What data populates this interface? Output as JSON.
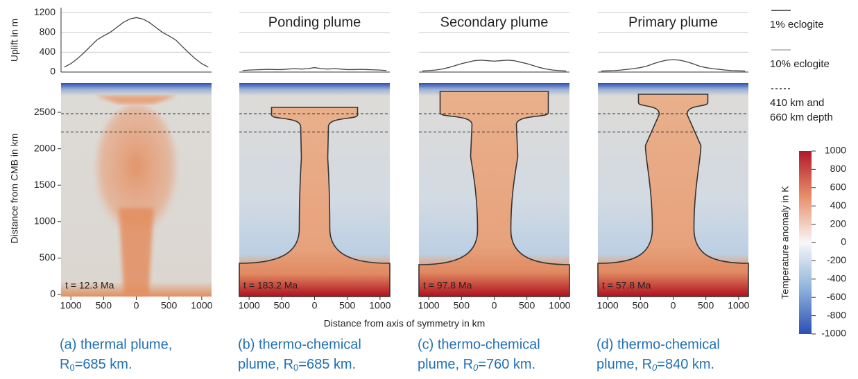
{
  "uplift_axis": {
    "label": "Uplift in m",
    "ylim": [
      0,
      1300
    ],
    "yticks": [
      0,
      400,
      800,
      1200
    ]
  },
  "field_axis": {
    "label": "Distance from CMB in km",
    "ylim": [
      0,
      2900
    ],
    "yticks": [
      0,
      500,
      1000,
      1500,
      2000,
      2500
    ],
    "xlabel": "Distance from axis of symmetry in km",
    "xlim": [
      -1150,
      1150
    ],
    "xticks": [
      {
        "value": -1000,
        "label": "1000"
      },
      {
        "value": -500,
        "label": "500"
      },
      0,
      500,
      1000
    ],
    "depth_lines": [
      2480,
      2230
    ]
  },
  "chart_data": [
    {
      "type": "line",
      "color": "#444444",
      "x": [
        -1100,
        -1000,
        -900,
        -800,
        -700,
        -600,
        -500,
        -400,
        -300,
        -200,
        -100,
        0,
        100,
        200,
        300,
        400,
        500,
        600,
        700,
        800,
        900,
        1000,
        1100
      ],
      "values": [
        100,
        170,
        270,
        390,
        520,
        650,
        730,
        800,
        900,
        1000,
        1070,
        1100,
        1070,
        1000,
        900,
        800,
        730,
        650,
        520,
        390,
        270,
        170,
        100
      ],
      "time": "t = 12.3 Ma",
      "caption": {
        "line1": "(a) thermal plume,",
        "pre": "R",
        "sub": "0",
        "post": "=685 km."
      }
    },
    {
      "type": "line",
      "color": "#444444",
      "title": "Ponding plume",
      "title_color": "#c8102e",
      "x": [
        -1100,
        -1000,
        -900,
        -800,
        -700,
        -600,
        -500,
        -400,
        -300,
        -200,
        -100,
        0,
        100,
        200,
        300,
        400,
        500,
        600,
        700,
        800,
        900,
        1000,
        1100
      ],
      "values": [
        30,
        40,
        45,
        50,
        55,
        50,
        50,
        60,
        70,
        60,
        70,
        90,
        70,
        60,
        70,
        60,
        50,
        50,
        55,
        50,
        45,
        40,
        30
      ],
      "time": "t = 183.2 Ma",
      "caption": {
        "line1": "(b) thermo-chemical",
        "pre": "plume, R",
        "sub": "0",
        "post": "=685 km."
      }
    },
    {
      "type": "line",
      "color": "#444444",
      "title": "Secondary plume",
      "title_color": "#f5a020",
      "x": [
        -1100,
        -1000,
        -900,
        -800,
        -700,
        -600,
        -500,
        -400,
        -300,
        -200,
        -100,
        0,
        100,
        200,
        300,
        400,
        500,
        600,
        700,
        800,
        900,
        1000,
        1100
      ],
      "values": [
        20,
        30,
        40,
        60,
        90,
        130,
        170,
        200,
        230,
        240,
        230,
        220,
        230,
        240,
        230,
        200,
        170,
        130,
        90,
        60,
        40,
        30,
        20
      ],
      "time": "t = 97.8 Ma",
      "caption": {
        "line1": "(c) thermo-chemical",
        "pre": "plume, R",
        "sub": "0",
        "post": "=760 km."
      }
    },
    {
      "type": "line",
      "color": "#444444",
      "title": "Primary plume",
      "title_color": "#7ab648",
      "x": [
        -1100,
        -1000,
        -900,
        -800,
        -700,
        -600,
        -500,
        -400,
        -300,
        -200,
        -100,
        0,
        100,
        200,
        300,
        400,
        500,
        600,
        700,
        800,
        900,
        1000,
        1100
      ],
      "values": [
        20,
        25,
        30,
        40,
        55,
        70,
        90,
        120,
        170,
        210,
        240,
        250,
        240,
        210,
        170,
        120,
        90,
        70,
        55,
        40,
        30,
        25,
        20
      ],
      "time": "t = 57.8 Ma",
      "caption": {
        "line1": "(d) thermo-chemical",
        "pre": "plume, R",
        "sub": "0",
        "post": "=840 km."
      }
    }
  ],
  "legend": [
    {
      "label": [
        "1% eclogite"
      ],
      "color": "#333333",
      "dash": false
    },
    {
      "label": [
        "10% eclogite"
      ],
      "color": "#aaaaaa",
      "dash": false
    },
    {
      "label": [
        "410 km and",
        "660 km depth"
      ],
      "color": "#333333",
      "dash": true
    }
  ],
  "colorbar": {
    "label": "Temperature anomaly in K",
    "lim": [
      -1000,
      1000
    ],
    "ticks": [
      1000,
      800,
      600,
      400,
      200,
      0,
      -200,
      -400,
      -600,
      -800,
      -1000
    ],
    "colors": [
      "#b2182b",
      "#e8906a",
      "#f7f7f7",
      "#8fb3dc",
      "#2c4fb5"
    ]
  }
}
